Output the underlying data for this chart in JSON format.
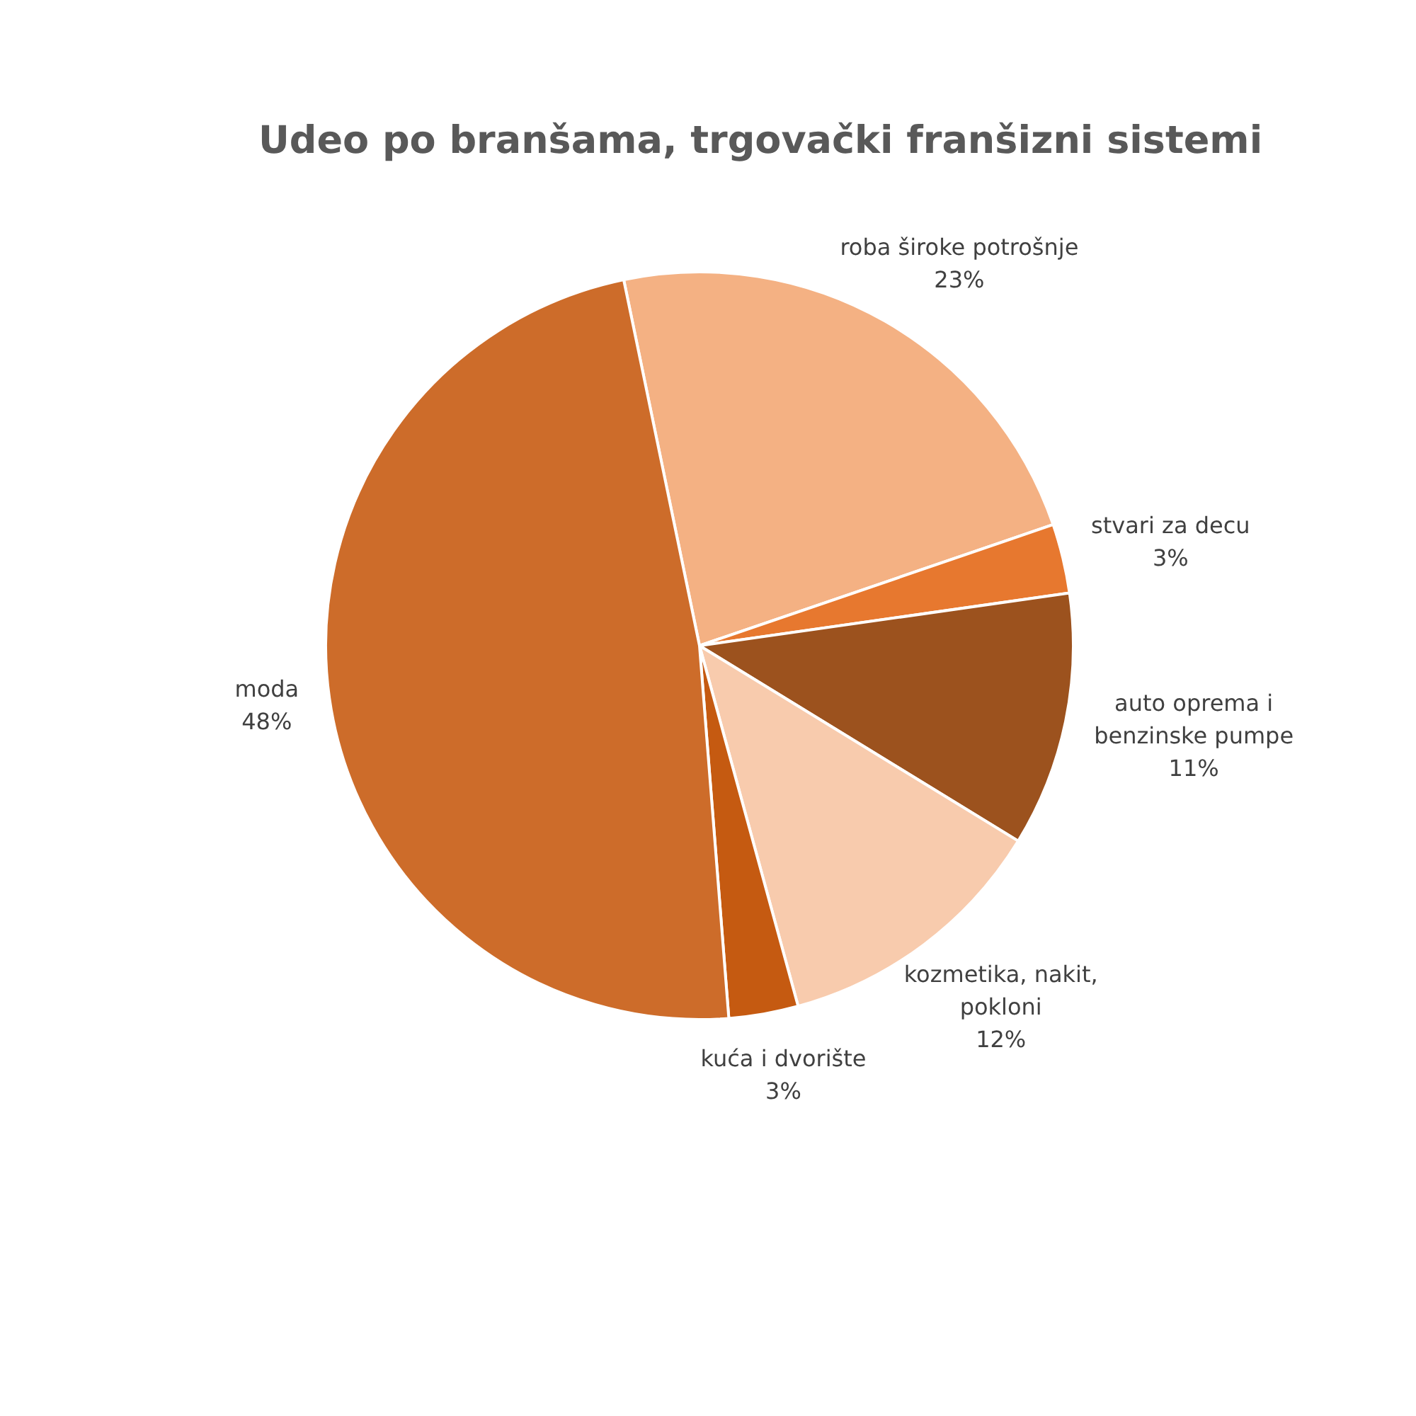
{
  "chart_data": {
    "type": "pie",
    "title": "Udeo po branšama, trgovački franšizni sistemi",
    "categories": [
      "roba široke potrošnje",
      "stvari za decu",
      "auto oprema i benzinske pumpe",
      "kozmetika, nakit, pokloni",
      "kuća i dvorište",
      "moda"
    ],
    "values": [
      23,
      3,
      11,
      12,
      3,
      48
    ],
    "colors": [
      "#f4b183",
      "#e7782f",
      "#9c521e",
      "#f8cbad",
      "#c55a11",
      "#cd6c2a"
    ],
    "value_labels": [
      "23%",
      "3%",
      "11%",
      "12%",
      "3%",
      "48%"
    ]
  }
}
